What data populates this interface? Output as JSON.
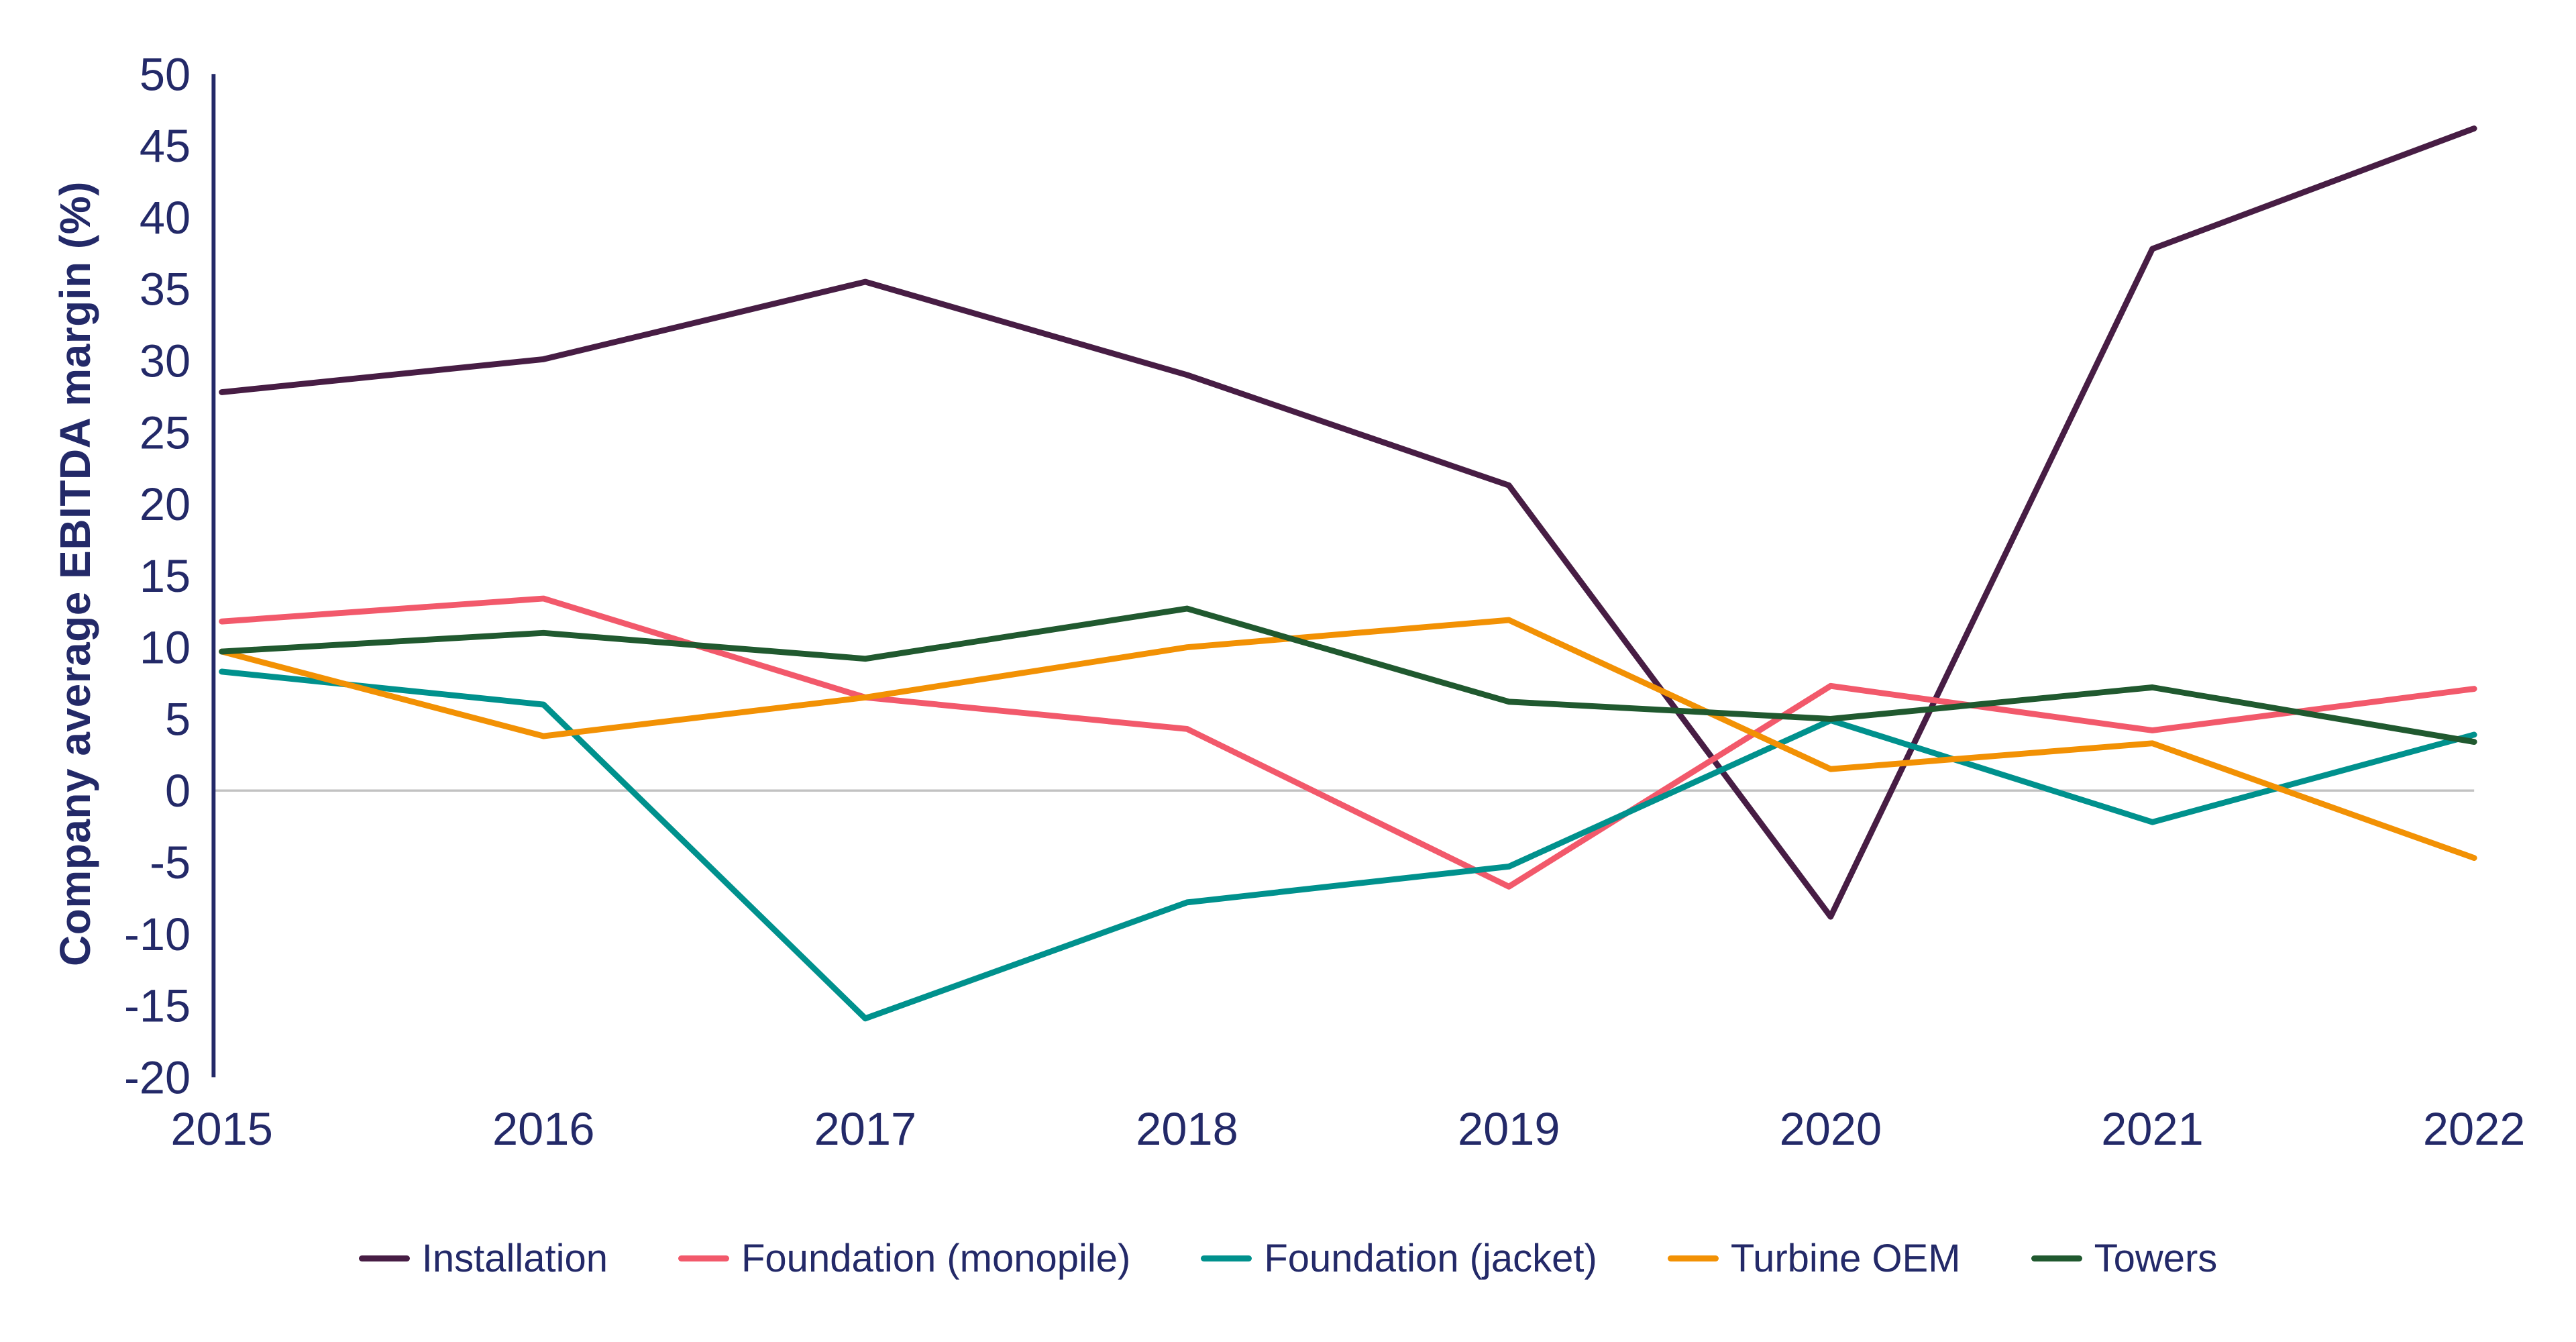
{
  "chart_data": {
    "type": "line",
    "title": "",
    "xlabel": "",
    "ylabel": "Company average EBITDA margin (%)",
    "x": [
      2015,
      2016,
      2017,
      2018,
      2019,
      2020,
      2021,
      2022
    ],
    "ylim": [
      -20,
      50
    ],
    "y_tick_step": 5,
    "grid": false,
    "zero_line": true,
    "legend_position": "bottom",
    "colors": {
      "axis_text": "#232968",
      "axis_line": "#232968",
      "zero_line": "#c2c2c2",
      "background": "#ffffff"
    },
    "series": [
      {
        "name": "Installation",
        "color": "#471d44",
        "values": [
          27.8,
          30.1,
          35.5,
          29.0,
          21.3,
          -8.8,
          37.8,
          46.2
        ]
      },
      {
        "name": "Foundation (monopile)",
        "color": "#f2596b",
        "values": [
          11.8,
          13.4,
          6.5,
          4.3,
          -6.7,
          7.3,
          4.2,
          7.1
        ]
      },
      {
        "name": "Foundation (jacket)",
        "color": "#00918d",
        "values": [
          8.3,
          6.0,
          -15.9,
          -7.8,
          -5.3,
          4.9,
          -2.2,
          3.9
        ]
      },
      {
        "name": "Turbine OEM",
        "color": "#f29104",
        "values": [
          9.7,
          3.8,
          6.5,
          10.0,
          11.9,
          1.5,
          3.3,
          -4.7
        ]
      },
      {
        "name": "Towers",
        "color": "#20592f",
        "values": [
          9.7,
          11.0,
          9.2,
          12.7,
          6.2,
          5.0,
          7.2,
          3.4
        ]
      }
    ]
  }
}
